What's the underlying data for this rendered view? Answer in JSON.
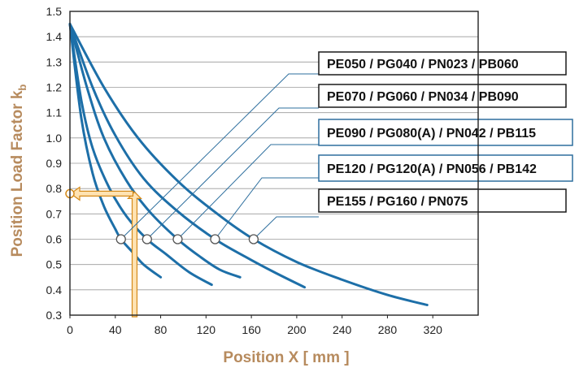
{
  "chart_data": {
    "type": "line",
    "xlabel": "Position X [ mm ]",
    "ylabel": "Position Load Factor k",
    "ylabel_subscript": "b",
    "xlim": [
      0,
      360
    ],
    "ylim": [
      0.3,
      1.5
    ],
    "x_ticks": [
      0,
      40,
      80,
      120,
      160,
      200,
      240,
      280,
      320
    ],
    "y_ticks": [
      0.3,
      0.4,
      0.5,
      0.6,
      0.7,
      0.8,
      0.9,
      1.0,
      1.1,
      1.2,
      1.3,
      1.4,
      1.5
    ],
    "grid": "horizontal",
    "series": [
      {
        "name": "PE050 / PG040 / PN023 / PB060",
        "marker": [
          45,
          0.6
        ],
        "points": [
          [
            0,
            1.45
          ],
          [
            10,
            1.08
          ],
          [
            20,
            0.86
          ],
          [
            30,
            0.73
          ],
          [
            40,
            0.64
          ],
          [
            45,
            0.6
          ],
          [
            55,
            0.55
          ],
          [
            65,
            0.5
          ],
          [
            80,
            0.45
          ]
        ]
      },
      {
        "name": "PE070 / PG060 / PN034 / PB090",
        "marker": [
          68,
          0.6
        ],
        "points": [
          [
            0,
            1.45
          ],
          [
            10,
            1.15
          ],
          [
            20,
            0.96
          ],
          [
            35,
            0.8
          ],
          [
            50,
            0.69
          ],
          [
            68,
            0.6
          ],
          [
            85,
            0.54
          ],
          [
            105,
            0.47
          ],
          [
            125,
            0.42
          ]
        ]
      },
      {
        "name": "PE090 / PG080(A) / PN042 / PB115",
        "marker": [
          95,
          0.6
        ],
        "points": [
          [
            0,
            1.45
          ],
          [
            15,
            1.2
          ],
          [
            30,
            1.0
          ],
          [
            50,
            0.83
          ],
          [
            70,
            0.71
          ],
          [
            95,
            0.6
          ],
          [
            115,
            0.53
          ],
          [
            132,
            0.48
          ],
          [
            150,
            0.45
          ]
        ]
      },
      {
        "name": "PE120 / PG120(A) / PN056 / PB142",
        "marker": [
          128,
          0.6
        ],
        "points": [
          [
            0,
            1.45
          ],
          [
            20,
            1.2
          ],
          [
            40,
            1.01
          ],
          [
            65,
            0.84
          ],
          [
            95,
            0.71
          ],
          [
            128,
            0.6
          ],
          [
            155,
            0.53
          ],
          [
            180,
            0.47
          ],
          [
            207,
            0.41
          ]
        ]
      },
      {
        "name": "PE155 / PG160 / PN075",
        "marker": [
          162,
          0.6
        ],
        "points": [
          [
            0,
            1.45
          ],
          [
            30,
            1.2
          ],
          [
            60,
            1.0
          ],
          [
            95,
            0.83
          ],
          [
            130,
            0.7
          ],
          [
            162,
            0.6
          ],
          [
            200,
            0.51
          ],
          [
            240,
            0.44
          ],
          [
            280,
            0.38
          ],
          [
            315,
            0.34
          ]
        ]
      }
    ],
    "example": {
      "x": 57,
      "k": 0.78
    },
    "colors": {
      "curve": "#1d6fa8",
      "leader": "#2e6f9e",
      "legend_border": "#2e6f9e",
      "legend_border_alt": "#1a1a1a",
      "arrow": "#f5b85c",
      "arrow_outline": "#d48a1a",
      "axis_title": "#b78b5e",
      "grid": "#9a9a9a",
      "marker_fill": "#ffffff",
      "marker_stroke": "#555555"
    }
  }
}
